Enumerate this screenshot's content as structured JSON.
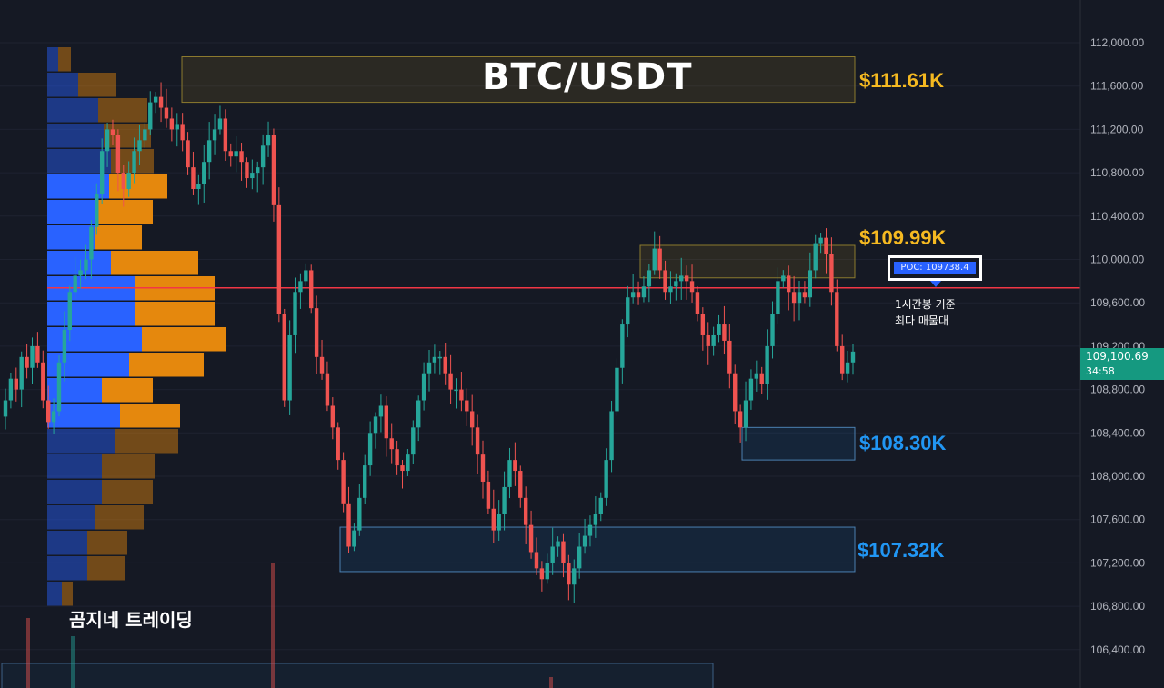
{
  "title": "BTC/USDT",
  "brand": "곰지네 트레이딩",
  "poc": {
    "label": "POC: 109738.4",
    "note_line1": "1시간봉 기준",
    "note_line2": "최다 매물대",
    "price": 109738.4
  },
  "last_price": {
    "value": "109,100.69",
    "countdown": "34:58"
  },
  "colors": {
    "background": "#151924",
    "up": "#26a69a",
    "down": "#ef5350",
    "volume_up": "#2962ff",
    "volume_down": "#e5880d",
    "poc_line": "#f23645",
    "resistance": "#f5b921",
    "support": "#2196f3"
  },
  "chart_data": {
    "type": "candlestick",
    "title": "BTC/USDT",
    "y_axis": {
      "position": "right",
      "ylim": [
        106000,
        112400
      ],
      "ticks": [
        106400,
        106800,
        107200,
        107600,
        108000,
        108400,
        108800,
        109200,
        109600,
        110000,
        110400,
        110800,
        111200,
        111600,
        112000,
        112400
      ]
    },
    "close_series": [
      108700,
      108900,
      108800,
      109100,
      109000,
      109200,
      109050,
      108700,
      108500,
      108600,
      109050,
      109350,
      109700,
      109850,
      109900,
      110000,
      110300,
      110600,
      111000,
      111200,
      111150,
      110800,
      110650,
      110800,
      111000,
      111100,
      111200,
      111450,
      111500,
      111400,
      111300,
      111200,
      111250,
      111100,
      110850,
      110650,
      110700,
      110900,
      111100,
      111200,
      111300,
      111000,
      110950,
      111000,
      110900,
      110750,
      110800,
      110850,
      111050,
      111150,
      110500,
      109500,
      108700,
      109300,
      109700,
      109800,
      109900,
      109550,
      109100,
      108950,
      108650,
      108450,
      108150,
      107750,
      107350,
      107500,
      107800,
      108100,
      108400,
      108550,
      108650,
      108350,
      108250,
      108100,
      108050,
      108200,
      108450,
      108700,
      108950,
      109050,
      109100,
      109100,
      108950,
      108800,
      108800,
      108700,
      108600,
      108450,
      108200,
      107950,
      107700,
      107500,
      107650,
      107900,
      108150,
      108050,
      107800,
      107550,
      107300,
      107150,
      107050,
      107200,
      107350,
      107400,
      107200,
      107000,
      107150,
      107350,
      107450,
      107550,
      107650,
      107800,
      108150,
      108600,
      109000,
      109400,
      109650,
      109700,
      109650,
      109750,
      109900,
      110100,
      109900,
      109700,
      109750,
      109800,
      109850,
      109800,
      109700,
      109500,
      109300,
      109200,
      109300,
      109400,
      109250,
      108950,
      108600,
      108450,
      108700,
      108900,
      108950,
      108850,
      109200,
      109500,
      109800,
      109850,
      109700,
      109600,
      109700,
      109650,
      109900,
      110150,
      110200,
      110050,
      109700,
      109200,
      108950,
      109050,
      109150
    ],
    "volume_profile": {
      "up_color": "#2962ff",
      "down_color": "#e5880d",
      "rows": [
        {
          "price": 112000,
          "up": 120,
          "down": 140
        },
        {
          "price": 111700,
          "up": 340,
          "down": 420
        },
        {
          "price": 111400,
          "up": 560,
          "down": 540
        },
        {
          "price": 111100,
          "up": 620,
          "down": 520
        },
        {
          "price": 110800,
          "up": 700,
          "down": 470
        },
        {
          "price": 110500,
          "up": 680,
          "down": 640
        },
        {
          "price": 110200,
          "up": 560,
          "down": 600
        },
        {
          "price": 109900,
          "up": 520,
          "down": 520
        },
        {
          "price": 109700,
          "up": 700,
          "down": 960
        },
        {
          "price": 109400,
          "up": 960,
          "down": 880
        },
        {
          "price": 109100,
          "up": 960,
          "down": 880
        },
        {
          "price": 108800,
          "up": 1040,
          "down": 920
        },
        {
          "price": 108500,
          "up": 900,
          "down": 820
        },
        {
          "price": 108200,
          "up": 600,
          "down": 560
        },
        {
          "price": 107900,
          "up": 800,
          "down": 660
        },
        {
          "price": 107600,
          "up": 740,
          "down": 700
        },
        {
          "price": 107300,
          "up": 600,
          "down": 580
        },
        {
          "price": 107000,
          "up": 600,
          "down": 560
        },
        {
          "price": 106700,
          "up": 520,
          "down": 540
        },
        {
          "price": 106400,
          "up": 440,
          "down": 440
        },
        {
          "price": 106100,
          "up": 440,
          "down": 420
        },
        {
          "price": 105800,
          "up": 160,
          "down": 120
        }
      ]
    },
    "zones": [
      {
        "label": "$111.61K",
        "low": 111450,
        "high": 111870,
        "kind": "resistance"
      },
      {
        "label": "$109.99K",
        "low": 109830,
        "high": 110130,
        "kind": "resistance"
      },
      {
        "label": "$108.30K",
        "low": 108150,
        "high": 108450,
        "kind": "support"
      },
      {
        "label": "$107.32K",
        "low": 107120,
        "high": 107530,
        "kind": "support"
      }
    ]
  }
}
